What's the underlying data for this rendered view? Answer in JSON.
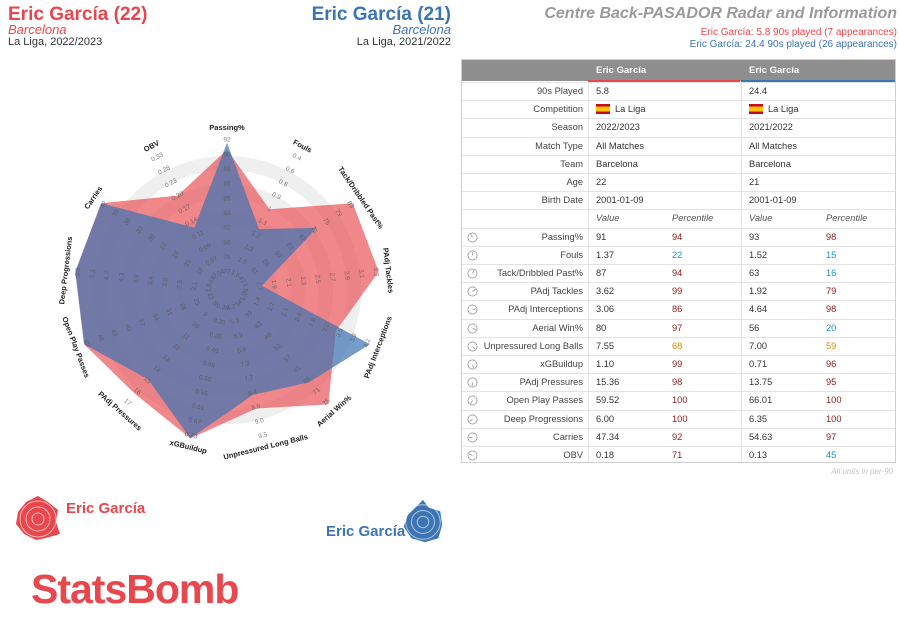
{
  "header": {
    "player1": {
      "name": "Eric García (22)",
      "team": "Barcelona",
      "season": "La Liga, 2022/2023",
      "color": "#e8474d"
    },
    "player2": {
      "name": "Eric García (21)",
      "team": "Barcelona",
      "season": "La Liga, 2021/2022",
      "color": "#3c74b4"
    },
    "title": "Centre Back-PASADOR Radar and Information",
    "info1": "Eric García: 5.8 90s played (7 appearances)",
    "info2": "Eric García: 24.4 90s played (26 appearances)"
  },
  "table": {
    "col1": "Eric García",
    "col2": "Eric García",
    "info_rows": [
      {
        "label": "90s Played",
        "v1": "5.8",
        "v2": "24.4"
      },
      {
        "label": "Competition",
        "v1": "La Liga",
        "v2": "La Liga",
        "flag": true
      },
      {
        "label": "Season",
        "v1": "2022/2023",
        "v2": "2021/2022"
      },
      {
        "label": "Match Type",
        "v1": "All Matches",
        "v2": "All Matches"
      },
      {
        "label": "Team",
        "v1": "Barcelona",
        "v2": "Barcelona"
      },
      {
        "label": "Age",
        "v1": "22",
        "v2": "21"
      },
      {
        "label": "Birth Date",
        "v1": "2001-01-09",
        "v2": "2001-01-09"
      }
    ],
    "value_header": "Value",
    "percentile_header": "Percentile",
    "stat_rows": [
      {
        "label": "Passing%",
        "v1": "91",
        "p1": "94",
        "v2": "93",
        "p2": "98"
      },
      {
        "label": "Fouls",
        "v1": "1.37",
        "p1": "22",
        "v2": "1.52",
        "p2": "15"
      },
      {
        "label": "Tack/Dribbled Past%",
        "v1": "87",
        "p1": "94",
        "v2": "63",
        "p2": "16"
      },
      {
        "label": "PAdj Tackles",
        "v1": "3.62",
        "p1": "99",
        "v2": "1.92",
        "p2": "79"
      },
      {
        "label": "PAdj Interceptions",
        "v1": "3.06",
        "p1": "86",
        "v2": "4.64",
        "p2": "98"
      },
      {
        "label": "Aerial Win%",
        "v1": "80",
        "p1": "97",
        "v2": "56",
        "p2": "20"
      },
      {
        "label": "Unpressured Long Balls",
        "v1": "7.55",
        "p1": "68",
        "v2": "7.00",
        "p2": "59"
      },
      {
        "label": "xGBuildup",
        "v1": "1.10",
        "p1": "99",
        "v2": "0.71",
        "p2": "96"
      },
      {
        "label": "PAdj Pressures",
        "v1": "15.36",
        "p1": "98",
        "v2": "13.75",
        "p2": "95"
      },
      {
        "label": "Open Play Passes",
        "v1": "59.52",
        "p1": "100",
        "v2": "66.01",
        "p2": "100"
      },
      {
        "label": "Deep Progressions",
        "v1": "6.00",
        "p1": "100",
        "v2": "6.35",
        "p2": "100"
      },
      {
        "label": "Carries",
        "v1": "47.34",
        "p1": "92",
        "v2": "54.63",
        "p2": "97"
      },
      {
        "label": "OBV",
        "v1": "0.18",
        "p1": "71",
        "v2": "0.13",
        "p2": "45"
      }
    ],
    "units_note": "All units in per-90"
  },
  "chart_data": {
    "type": "radar",
    "title": "Centre Back-PASADOR Radar and Information",
    "axes": [
      {
        "label": "Passing%",
        "ticks": [
          "77",
          "78",
          "80",
          "82",
          "83",
          "85",
          "86",
          "88",
          "90",
          "92"
        ]
      },
      {
        "label": "Fouls",
        "ticks": [
          "1.6",
          "1.5",
          "1.3",
          "1.2",
          "1.1",
          "1",
          "0.9",
          "0.8",
          "0.6",
          "0.4"
        ]
      },
      {
        "label": "Tack/Dribbled Past%",
        "ticks": [
          "47",
          "51",
          "55",
          "59",
          "63",
          "67",
          "71",
          "75",
          "79",
          "83"
        ]
      },
      {
        "label": "PAdj Tackles",
        "ticks": [
          "1.5",
          "1.7",
          "1.9",
          "2.1",
          "2.3",
          "2.5",
          "2.7",
          "2.9",
          "3.1",
          "3.3"
        ]
      },
      {
        "label": "PAdj Interceptions",
        "ticks": [
          "1.0",
          "1.4",
          "1.7",
          "2.1",
          "2.4",
          "2.8",
          "3.2",
          "3.5",
          "3.9",
          "4.2"
        ]
      },
      {
        "label": "Aerial Win%",
        "ticks": [
          "34",
          "39",
          "43",
          "48",
          "52",
          "57",
          "61",
          "66",
          "71",
          "75"
        ]
      },
      {
        "label": "Unpressured Long Balls",
        "ticks": [
          "4.7",
          "5.3",
          "5.9",
          "6.6",
          "7.2",
          "7.7",
          "8.4",
          "8.9",
          "9.0",
          "9.5"
        ]
      },
      {
        "label": "xGBuildup",
        "ticks": [
          "0.28",
          "0.30",
          "0.35",
          "0.40",
          "0.45",
          "0.50",
          "0.55",
          "0.61",
          "0.67",
          "0.73"
        ]
      },
      {
        "label": "PAdj Pressures",
        "ticks": [
          "8",
          "9",
          "10",
          "11",
          "12",
          "13",
          "14",
          "15",
          "16",
          "17"
        ]
      },
      {
        "label": "Open Play Passes",
        "ticks": [
          "22",
          "25",
          "28",
          "31",
          "34",
          "37",
          "40",
          "43",
          "46",
          "49"
        ]
      },
      {
        "label": "Deep Progressions",
        "ticks": [
          "1.6",
          "2.1",
          "2.5",
          "3.0",
          "3.4",
          "3.9",
          "4.3",
          "4.7",
          "5.1",
          "5.5"
        ]
      },
      {
        "label": "Carries",
        "ticks": [
          "15",
          "18",
          "21",
          "24",
          "27",
          "30",
          "33",
          "36",
          "39",
          "42"
        ]
      },
      {
        "label": "OBV",
        "ticks": [
          "0.04",
          "0.07",
          "0.09",
          "0.11",
          "0.14",
          "0.17",
          "0.20",
          "0.23",
          "0.28",
          "0.33"
        ]
      }
    ],
    "series": [
      {
        "name": "Eric García (22)",
        "color": "#e8474d",
        "values": [
          91,
          1.37,
          87,
          3.62,
          3.06,
          80,
          7.55,
          1.1,
          15.36,
          59.52,
          6.0,
          47.34,
          0.18
        ]
      },
      {
        "name": "Eric García (21)",
        "color": "#3c74b4",
        "values": [
          93,
          1.52,
          63,
          1.92,
          4.64,
          56,
          7.0,
          0.71,
          13.75,
          66.01,
          6.35,
          54.63,
          0.13
        ]
      }
    ],
    "radial_scale": [
      [
        0.93,
        0.58,
        1.02,
        1.02,
        0.76,
        1.02,
        0.8,
        1.02,
        0.92,
        1.02,
        1.02,
        1.02,
        0.69
      ],
      [
        0.98,
        0.42,
        0.71,
        0.18,
        1.02,
        0.81,
        0.7,
        1.02,
        0.78,
        1.02,
        1.02,
        1.02,
        0.43
      ]
    ]
  },
  "logos": {
    "player1_label": "Eric García",
    "player2_label": "Eric García"
  },
  "brand": "StatsBomb",
  "percentile_colors": {
    "high": "#8b1a1a",
    "mid": "#e08a00",
    "low": "#1f8fc0"
  }
}
